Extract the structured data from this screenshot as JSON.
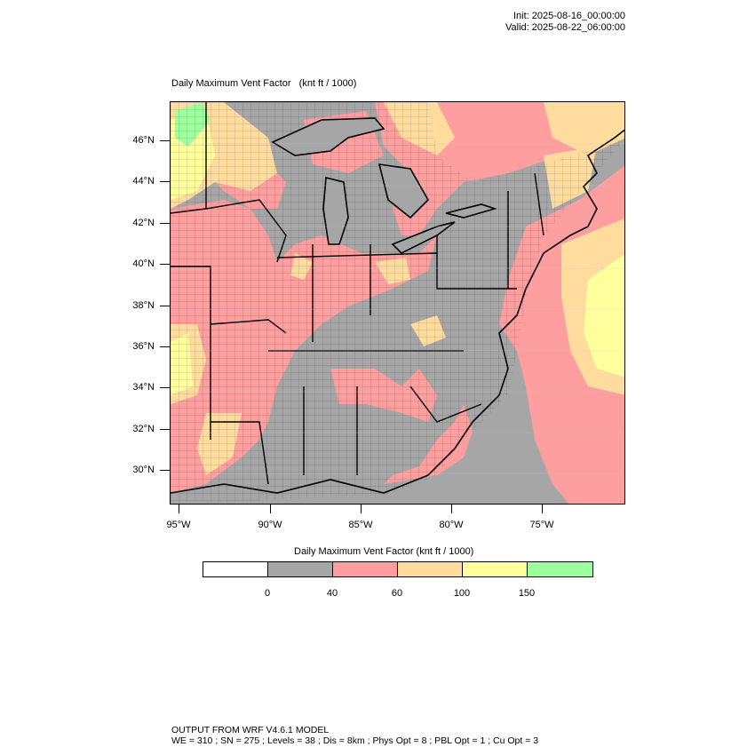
{
  "header": {
    "init": "Init: 2025-08-16_00:00:00",
    "valid": "Valid: 2025-08-22_06:00:00"
  },
  "map": {
    "title": "Daily Maximum Vent Factor",
    "units": "(knt ft / 1000)",
    "lat_labels": [
      "46°N",
      "44°N",
      "42°N",
      "40°N",
      "38°N",
      "36°N",
      "34°N",
      "32°N",
      "30°N"
    ],
    "lon_labels": [
      "95°W",
      "90°W",
      "85°W",
      "80°W",
      "75°W"
    ],
    "colors": {
      "lt0": "#ffffff",
      "c0_40": "#a6a6a6",
      "c40_60": "#ff9e9e",
      "c60_100": "#ffdc9e",
      "c100_150": "#ffff9e",
      "gt150": "#9eff9e"
    }
  },
  "colorbar": {
    "title": "Daily Maximum Vent Factor  (knt ft / 1000)",
    "levels": [
      "0",
      "40",
      "60",
      "100",
      "150"
    ],
    "colors": [
      "#ffffff",
      "#a6a6a6",
      "#ff9e9e",
      "#ffdc9e",
      "#ffff9e",
      "#9eff9e"
    ]
  },
  "footer": {
    "line1": "OUTPUT FROM WRF V4.6.1 MODEL",
    "line2": "WE = 310 ; SN = 275 ; Levels = 38 ; Dis = 8km ; Phys Opt = 8 ; PBL Opt = 1 ; Cu Opt = 3"
  }
}
